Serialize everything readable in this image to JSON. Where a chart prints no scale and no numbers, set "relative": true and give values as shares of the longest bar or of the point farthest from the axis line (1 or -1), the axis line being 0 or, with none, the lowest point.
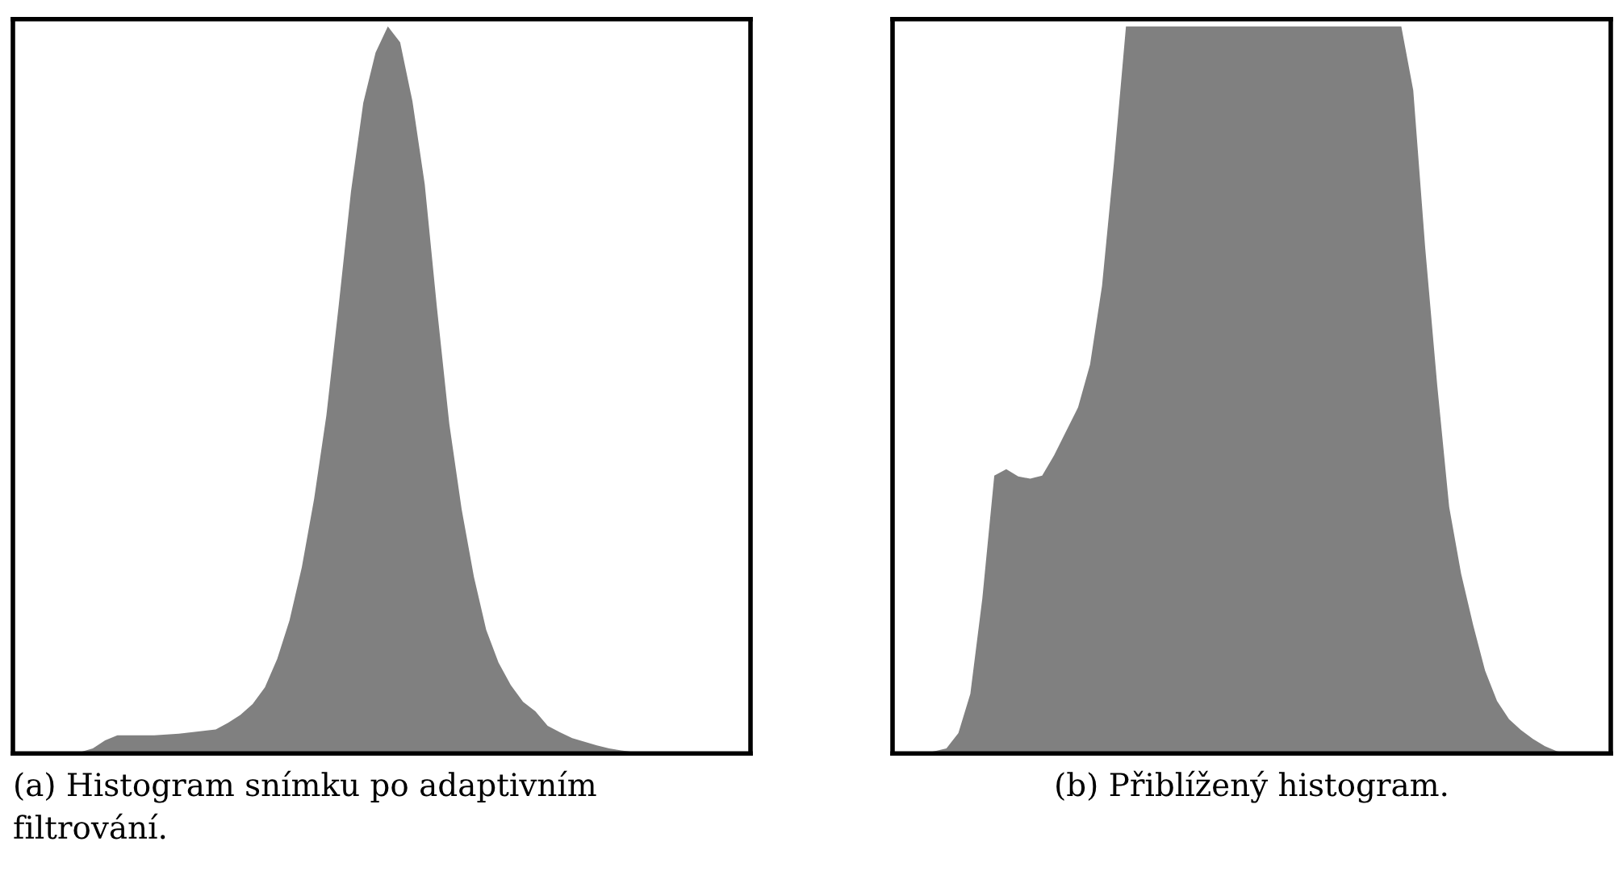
{
  "chart_data": [
    {
      "type": "area",
      "relative": true,
      "title": "(a) Histogram snímku po adaptivním\nfiltrování.",
      "color": "#808080",
      "categories": [
        null,
        null,
        null,
        null,
        null,
        null,
        null,
        null,
        null,
        null,
        null,
        null,
        null,
        null,
        null,
        null,
        null,
        null,
        null,
        null,
        null,
        null,
        null,
        null,
        null,
        null,
        null,
        null,
        null,
        null,
        null,
        null,
        null,
        null,
        null,
        null,
        null,
        null,
        null,
        null,
        null,
        null,
        null,
        null,
        null,
        null,
        null,
        null,
        null,
        null,
        null,
        null,
        null,
        null,
        null,
        null,
        null,
        null,
        null,
        null
      ],
      "values": [
        0,
        0,
        0,
        0,
        0,
        0.002,
        0.007,
        0.018,
        0.025,
        0.025,
        0.025,
        0.025,
        0.026,
        0.027,
        0.029,
        0.031,
        0.033,
        0.042,
        0.053,
        0.068,
        0.091,
        0.13,
        0.183,
        0.256,
        0.35,
        0.465,
        0.616,
        0.773,
        0.895,
        0.964,
        1,
        0.978,
        0.897,
        0.783,
        0.612,
        0.453,
        0.336,
        0.243,
        0.17,
        0.125,
        0.094,
        0.071,
        0.058,
        0.038,
        0.029,
        0.021,
        0.016,
        0.011,
        0.007,
        0.004,
        0.002,
        0,
        0,
        0,
        0,
        0,
        0,
        0,
        0,
        0
      ]
    },
    {
      "type": "area",
      "relative": true,
      "title": "(b) Přiblížený histogram.",
      "color": "#808080",
      "categories": [
        null,
        null,
        null,
        null,
        null,
        null,
        null,
        null,
        null,
        null,
        null,
        null,
        null,
        null,
        null,
        null,
        null,
        null,
        null,
        null,
        null,
        null,
        null,
        null,
        null,
        null,
        null,
        null,
        null,
        null,
        null,
        null,
        null,
        null,
        null,
        null,
        null,
        null,
        null,
        null,
        null,
        null,
        null,
        null,
        null,
        null,
        null,
        null,
        null,
        null,
        null,
        null,
        null,
        null,
        null,
        null,
        null,
        null,
        null,
        null
      ],
      "values": [
        0,
        0,
        0,
        0.003,
        0.007,
        0.028,
        0.082,
        0.213,
        0.382,
        0.391,
        0.381,
        0.378,
        0.382,
        0.41,
        0.443,
        0.476,
        0.535,
        0.643,
        0.813,
        1,
        1,
        1,
        1,
        1,
        1,
        1,
        1,
        1,
        1,
        1,
        1,
        1,
        1,
        1,
        1,
        1,
        1,
        1,
        1,
        1,
        1,
        1,
        1,
        0.912,
        0.695,
        0.507,
        0.339,
        0.247,
        0.177,
        0.114,
        0.072,
        0.047,
        0.032,
        0.02,
        0.01,
        0.003,
        0,
        0,
        0,
        0
      ]
    }
  ]
}
